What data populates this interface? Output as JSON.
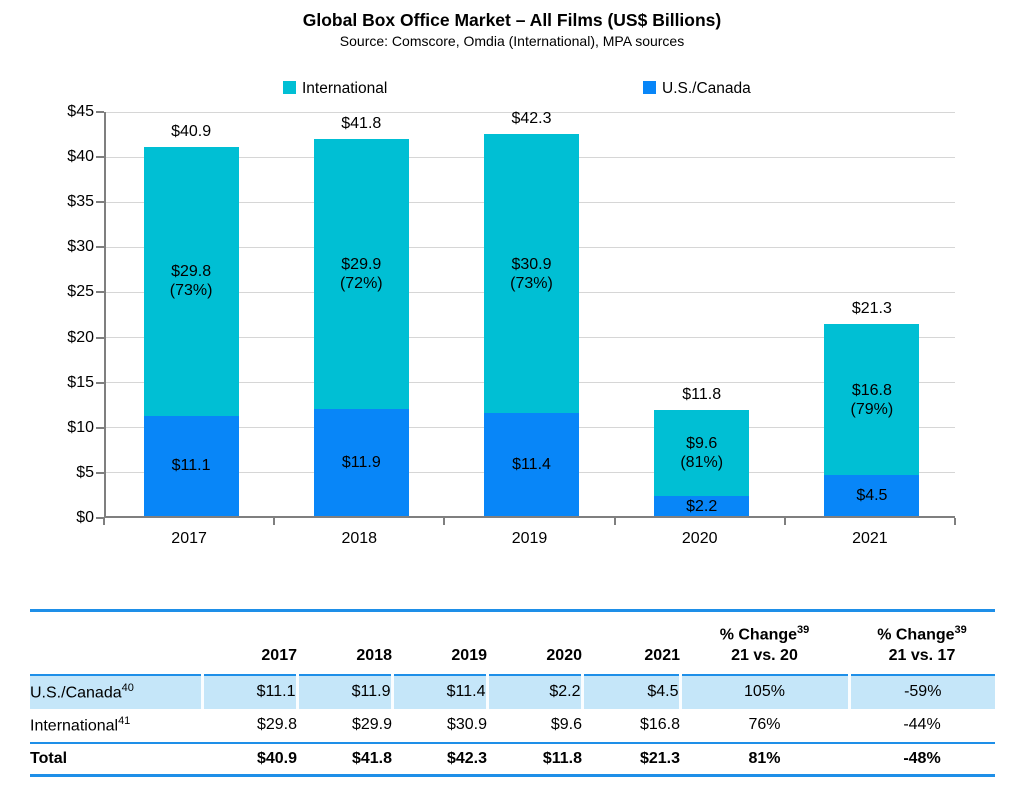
{
  "title": "Global Box Office Market – All Films (US$ Billions)",
  "subtitle": "Source: Comscore, Omdia (International), MPA sources",
  "chart_data": {
    "type": "bar",
    "stacked": true,
    "title": "Global Box Office Market – All Films (US$ Billions)",
    "subtitle": "Source: Comscore, Omdia (International), MPA sources",
    "categories": [
      "2017",
      "2018",
      "2019",
      "2020",
      "2021"
    ],
    "series": [
      {
        "name": "U.S./Canada",
        "color": "#0886f8",
        "values": [
          11.1,
          11.9,
          11.4,
          2.2,
          4.5
        ],
        "value_labels": [
          "$11.1",
          "$11.9",
          "$11.4",
          "$2.2",
          "$4.5"
        ]
      },
      {
        "name": "International",
        "color": "#00bfd4",
        "values": [
          29.8,
          29.9,
          30.9,
          9.6,
          16.8
        ],
        "value_labels": [
          "$29.8",
          "$29.9",
          "$30.9",
          "$9.6",
          "$16.8"
        ],
        "pct_labels": [
          "(73%)",
          "(72%)",
          "(73%)",
          "(81%)",
          "(79%)"
        ]
      }
    ],
    "totals": [
      40.9,
      41.8,
      42.3,
      11.8,
      21.3
    ],
    "total_labels": [
      "$40.9",
      "$41.8",
      "$42.3",
      "$11.8",
      "$21.3"
    ],
    "ylim": [
      0,
      45
    ],
    "ytick_step": 5,
    "ytick_labels": [
      "$0",
      "$5",
      "$10",
      "$15",
      "$20",
      "$25",
      "$30",
      "$35",
      "$40",
      "$45"
    ],
    "grid": true,
    "legend_position": "top",
    "legend": [
      {
        "label": "International",
        "color": "#00bfd4"
      },
      {
        "label": "U.S./Canada",
        "color": "#0886f8"
      }
    ]
  },
  "table": {
    "header": {
      "years": [
        "2017",
        "2018",
        "2019",
        "2020",
        "2021"
      ],
      "pct_cols": [
        {
          "line1": "% Change",
          "sup": "39",
          "line2": "21 vs. 20"
        },
        {
          "line1": "% Change",
          "sup": "39",
          "line2": "21 vs. 17"
        }
      ]
    },
    "rows": [
      {
        "label": "U.S./Canada",
        "sup": "40",
        "values": [
          "$11.1",
          "$11.9",
          "$11.4",
          "$2.2",
          "$4.5"
        ],
        "pcts": [
          "105%",
          "-59%"
        ],
        "style": "highlight"
      },
      {
        "label": "International",
        "sup": "41",
        "values": [
          "$29.8",
          "$29.9",
          "$30.9",
          "$9.6",
          "$16.8"
        ],
        "pcts": [
          "76%",
          "-44%"
        ],
        "style": "plain"
      },
      {
        "label": "Total",
        "sup": "",
        "values": [
          "$40.9",
          "$41.8",
          "$42.3",
          "$11.8",
          "$21.3"
        ],
        "pcts": [
          "81%",
          "-48%"
        ],
        "style": "total"
      }
    ]
  },
  "colors": {
    "international": "#00bfd4",
    "us_canada": "#0886f8",
    "table_rule": "#1e8fe8",
    "row_highlight": "#c5e6f9",
    "gridline": "#d6d6d6",
    "axis": "#7f7f7f"
  }
}
